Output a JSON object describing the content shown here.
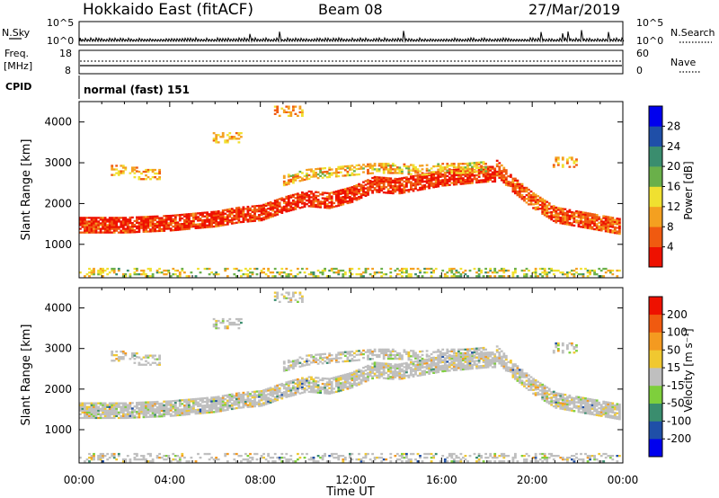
{
  "header": {
    "title": "Hokkaido East (fitACF)",
    "beam": "Beam 08",
    "date": "27/Mar/2019"
  },
  "noise_panel": {
    "left_label": "N.Sky",
    "right_label": "N.Search",
    "ticks_left": [
      "10^5",
      "10^0"
    ],
    "ticks_right": [
      "10^5",
      "10^0"
    ]
  },
  "freq_panel": {
    "left_label_1": "Freq.",
    "left_label_2": "[MHz]",
    "right_label": "Nave",
    "ticks_left": [
      "18",
      "8"
    ],
    "ticks_right": [
      "60",
      "0"
    ]
  },
  "cpid": {
    "label": "CPID",
    "value": "normal (fast) 151"
  },
  "colors": {
    "power_scale": [
      "#0000ee",
      "#1f4fa8",
      "#3a8d6e",
      "#6ab04a",
      "#f0e030",
      "#f4a020",
      "#f05a10",
      "#ee1100"
    ],
    "velocity_scale": [
      "#ee1100",
      "#f05a10",
      "#f49a20",
      "#f0c830",
      "#bfbfbf",
      "#7ecf3c",
      "#3a8d6e",
      "#1f4fa8",
      "#0000ee"
    ]
  },
  "chart_data": [
    {
      "type": "heatmap",
      "panel": "power",
      "ylabel": "Slant Range [km]",
      "xlabel": "",
      "xlim": [
        0,
        24
      ],
      "ylim": [
        180,
        4500
      ],
      "y_ticks": [
        "4000",
        "3000",
        "2000",
        "1000"
      ],
      "x_ticks": [
        "00:00",
        "04:00",
        "08:00",
        "12:00",
        "16:00",
        "20:00",
        "00:00"
      ],
      "colorbar": {
        "label": "Power [dB]",
        "ticks": [
          "28",
          "24",
          "20",
          "16",
          "12",
          "8",
          "4"
        ],
        "range": [
          0,
          30
        ]
      },
      "bands": [
        {
          "name": "main",
          "x": [
            0,
            2,
            4,
            6,
            7,
            8,
            9,
            10,
            11,
            12,
            13,
            14,
            15,
            16,
            17,
            18,
            18.3
          ],
          "y_center": [
            1450,
            1450,
            1500,
            1600,
            1700,
            1750,
            1950,
            2100,
            2050,
            2200,
            2450,
            2400,
            2500,
            2600,
            2650,
            2700,
            2700
          ],
          "power": 27
        },
        {
          "name": "upper",
          "x": [
            9,
            10,
            11,
            12,
            13,
            14,
            15,
            16,
            17,
            18
          ],
          "y_center": [
            2550,
            2700,
            2750,
            2800,
            2850,
            2850,
            2800,
            2850,
            2850,
            2900
          ],
          "power": 19
        },
        {
          "name": "evening",
          "x": [
            18.4,
            19,
            20,
            21,
            22,
            23,
            24
          ],
          "y_center": [
            2850,
            2500,
            2050,
            1700,
            1600,
            1500,
            1400
          ],
          "power": 25
        }
      ]
    },
    {
      "type": "heatmap",
      "panel": "velocity",
      "ylabel": "Slant Range [km]",
      "xlabel": "Time UT",
      "xlim": [
        0,
        24
      ],
      "ylim": [
        180,
        4500
      ],
      "y_ticks": [
        "4000",
        "3000",
        "2000",
        "1000"
      ],
      "x_ticks": [
        "00:00",
        "04:00",
        "08:00",
        "12:00",
        "16:00",
        "20:00",
        "00:00"
      ],
      "colorbar": {
        "label": "Velocity [m s⁻¹]",
        "ticks": [
          "200",
          "100",
          "50",
          "15",
          "-15",
          "-50",
          "-100",
          "-200"
        ]
      },
      "dominant_velocity": 0
    }
  ]
}
